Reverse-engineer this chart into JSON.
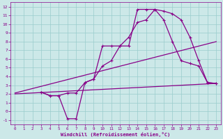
{
  "bg_color": "#cce8e8",
  "line_color": "#880088",
  "grid_color": "#99cccc",
  "xlabel": "Windchill (Refroidissement éolien,°C)",
  "xlabel_color": "#880088",
  "tick_color": "#880088",
  "xlim": [
    -0.5,
    23.5
  ],
  "ylim": [
    -1.5,
    12.5
  ],
  "yticks": [
    -1,
    0,
    1,
    2,
    3,
    4,
    5,
    6,
    7,
    8,
    9,
    10,
    11,
    12
  ],
  "xticks": [
    0,
    1,
    2,
    3,
    4,
    5,
    6,
    7,
    8,
    9,
    10,
    11,
    12,
    13,
    14,
    15,
    16,
    17,
    18,
    19,
    20,
    21,
    22,
    23
  ],
  "series": [
    {
      "x": [
        0,
        23
      ],
      "y": [
        2.0,
        3.2
      ],
      "marker": null,
      "linewidth": 0.9
    },
    {
      "x": [
        0,
        23
      ],
      "y": [
        2.1,
        8.0
      ],
      "marker": null,
      "linewidth": 0.9
    },
    {
      "x": [
        3,
        4,
        5,
        6,
        7,
        8,
        9,
        10,
        11,
        12,
        13,
        14,
        15,
        16,
        17,
        18,
        19,
        20,
        21,
        22,
        23
      ],
      "y": [
        2.2,
        1.8,
        1.8,
        2.1,
        2.1,
        3.3,
        3.7,
        5.2,
        5.8,
        7.5,
        8.5,
        10.2,
        10.5,
        11.7,
        11.5,
        11.2,
        10.5,
        8.5,
        5.8,
        3.3,
        3.2
      ],
      "marker": "+",
      "linewidth": 0.9
    },
    {
      "x": [
        3,
        4,
        5,
        6,
        7,
        8,
        9,
        10,
        11,
        12,
        13,
        14,
        15,
        16,
        17,
        18,
        19,
        20,
        21,
        22,
        23
      ],
      "y": [
        2.2,
        1.8,
        1.8,
        -0.85,
        -0.85,
        3.3,
        3.7,
        7.5,
        7.5,
        7.5,
        7.5,
        11.7,
        11.7,
        11.7,
        10.5,
        8.0,
        5.8,
        5.5,
        5.2,
        3.3,
        3.2
      ],
      "marker": "+",
      "linewidth": 0.9
    }
  ]
}
